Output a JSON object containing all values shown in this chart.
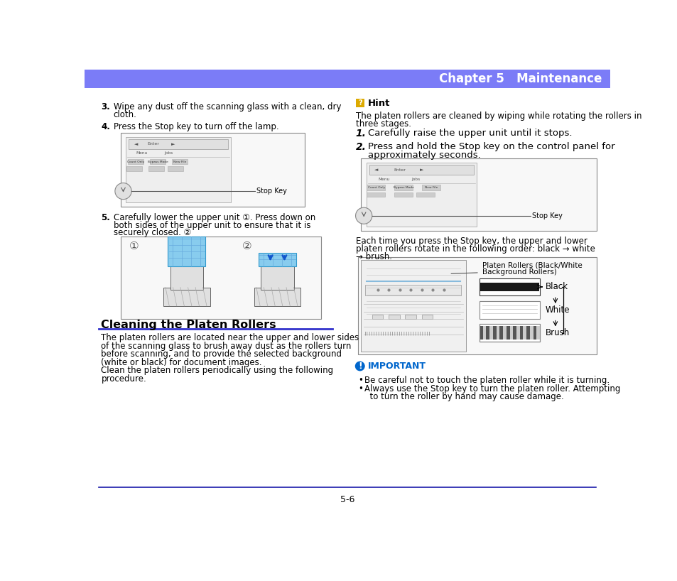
{
  "page_bg": "#ffffff",
  "header_bg": "#7b7cf7",
  "header_text": "Chapter 5   Maintenance",
  "header_text_color": "#ffffff",
  "footer_line_color": "#1a1aaa",
  "footer_text": "5-6",
  "section_title": "Cleaning the Platen Rollers",
  "section_title_underline_color": "#3333cc",
  "section_body": [
    "The platen rollers are located near the upper and lower sides",
    "of the scanning glass to brush away dust as the rollers turn",
    "before scanning, and to provide the selected background",
    "(white or black) for document images.",
    "Clean the platen rollers periodically using the following",
    "procedure."
  ],
  "hint_title": "Hint",
  "hint_icon_color": "#ddaa00",
  "hint_text1": "The platen rollers are cleaned by wiping while rotating the rollers in",
  "hint_text2": "three stages.",
  "each_time_text1": "Each time you press the Stop key, the upper and lower",
  "each_time_text2": "platen rollers rotate in the following order: black → white",
  "each_time_text3": "→ brush.",
  "platen_label1": "Platen Rollers (Black/White",
  "platen_label2": "Background Rollers)",
  "black_label": "Black",
  "white_label": "White",
  "brush_label": "Brush",
  "important_title": "IMPORTANT",
  "important_icon_color": "#0066cc",
  "important_bullets": [
    "Be careful not to touch the platen roller while it is turning.",
    "Always use the Stop key to turn the platen roller. Attempting",
    "  to turn the roller by hand may cause damage."
  ],
  "stop_key_label": "Stop Key",
  "body_font_size": 8.5,
  "title_font_size": 11.5,
  "small_font_size": 7.5,
  "step3_text1": "Wipe any dust off the scanning glass with a clean, dry",
  "step3_text2": "cloth.",
  "step4_text": "Press the Stop key to turn off the lamp.",
  "step5_text1": "Carefully lower the upper unit ①. Press down on",
  "step5_text2": "both sides of the upper unit to ensure that it is",
  "step5_text3": "securely closed. ②",
  "step1r_text": "Carefully raise the upper unit until it stops.",
  "step2r_text1": "Press and hold the Stop key on the control panel for",
  "step2r_text2": "approximately seconds."
}
